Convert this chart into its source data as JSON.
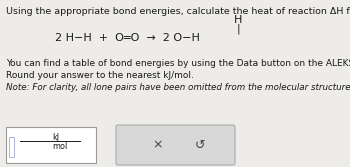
{
  "title_text": "Using the appropriate bond energies, calculate the heat of reaction ΔH for the following reaction:",
  "reaction_main": "2 H−H  +  O═O  →  2 O−H",
  "h_label": "H",
  "vert_bar": "|",
  "line1": "You can find a table of bond energies by using the Data button on the ALEKS toolbar.",
  "line2": "Round your answer to the nearest kJ/mol.",
  "line3": "Note: For clarity, all lone pairs have been omitted from the molecular structures.",
  "input_top": "kJ",
  "input_bot": "mol",
  "bg_color": "#eeece8",
  "white": "#ffffff",
  "box_edge": "#999999",
  "btn_bg": "#d8d8d8",
  "btn_edge": "#aaaaaa",
  "cursor_color": "#9090d0",
  "text_color": "#1a1a1a",
  "title_fs": 6.8,
  "body_fs": 6.5,
  "reaction_fs": 8.0,
  "note_fs": 6.3,
  "small_fs": 5.8
}
